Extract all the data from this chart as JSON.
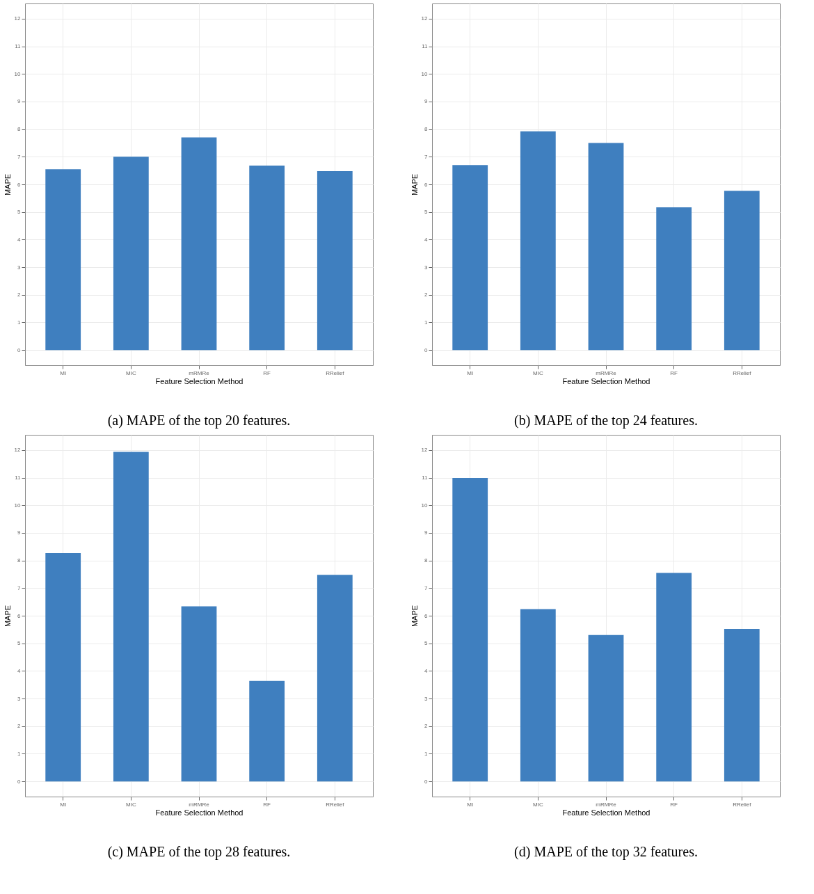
{
  "chart_data": [
    {
      "type": "bar",
      "title": "(a) MAPE of the top 20 features.",
      "xlabel": "Feature Selection Method",
      "ylabel": "MAPE",
      "categories": [
        "MI",
        "MIC",
        "mRMRe",
        "RF",
        "RRelief"
      ],
      "values": [
        6.55,
        7.0,
        7.7,
        6.68,
        6.48
      ],
      "color": "#3f7fbf",
      "ylim": [
        -0.55,
        12.55
      ],
      "yticks": [
        0,
        1,
        2,
        3,
        4,
        5,
        6,
        7,
        8,
        9,
        10,
        11,
        12
      ],
      "grid": true
    },
    {
      "type": "bar",
      "title": "(b) MAPE of the top 24 features.",
      "xlabel": "Feature Selection Method",
      "ylabel": "MAPE",
      "categories": [
        "MI",
        "MIC",
        "mRMRe",
        "RF",
        "RRelief"
      ],
      "values": [
        6.7,
        7.92,
        7.5,
        5.17,
        5.77
      ],
      "color": "#3f7fbf",
      "ylim": [
        -0.55,
        12.55
      ],
      "yticks": [
        0,
        1,
        2,
        3,
        4,
        5,
        6,
        7,
        8,
        9,
        10,
        11,
        12
      ],
      "grid": true
    },
    {
      "type": "bar",
      "title": "(c) MAPE of the top 28 features.",
      "xlabel": "Feature Selection Method",
      "ylabel": "MAPE",
      "categories": [
        "MI",
        "MIC",
        "mRMRe",
        "RF",
        "RRelief"
      ],
      "values": [
        8.27,
        11.93,
        6.34,
        3.64,
        7.48
      ],
      "color": "#3f7fbf",
      "ylim": [
        -0.55,
        12.55
      ],
      "yticks": [
        0,
        1,
        2,
        3,
        4,
        5,
        6,
        7,
        8,
        9,
        10,
        11,
        12
      ],
      "grid": true
    },
    {
      "type": "bar",
      "title": "(d) MAPE of the top 32 features.",
      "xlabel": "Feature Selection Method",
      "ylabel": "MAPE",
      "categories": [
        "MI",
        "MIC",
        "mRMRe",
        "RF",
        "RRelief"
      ],
      "values": [
        10.99,
        6.24,
        5.3,
        7.55,
        5.52
      ],
      "color": "#3f7fbf",
      "ylim": [
        -0.55,
        12.55
      ],
      "yticks": [
        0,
        1,
        2,
        3,
        4,
        5,
        6,
        7,
        8,
        9,
        10,
        11,
        12
      ],
      "grid": true
    }
  ]
}
